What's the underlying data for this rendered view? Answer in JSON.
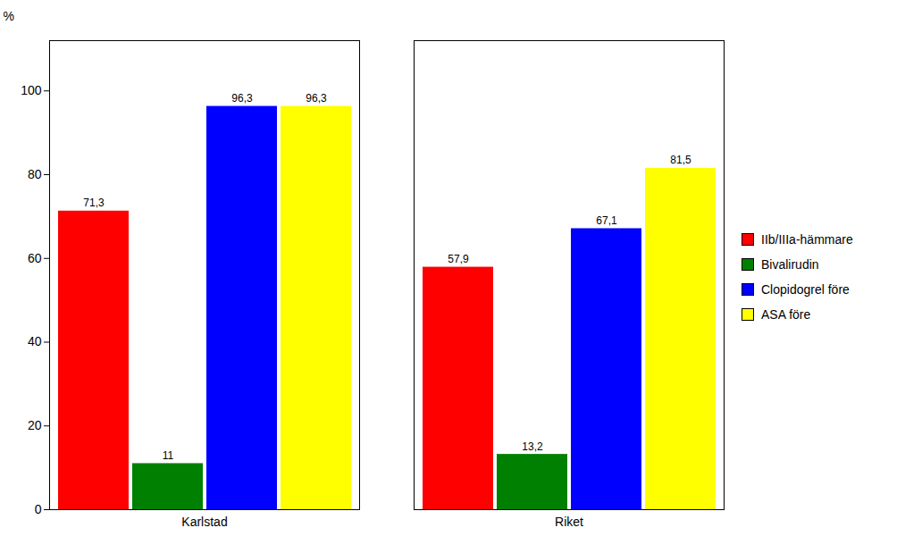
{
  "chart_data": {
    "type": "bar",
    "categories": [
      "Karlstad",
      "Riket"
    ],
    "series": [
      {
        "name": "IIb/IIIa-hämmare",
        "color": "#FF0000",
        "values": [
          71.3,
          57.9
        ],
        "value_labels": [
          "71,3",
          "57,9"
        ]
      },
      {
        "name": "Bivalirudin",
        "color": "#008000",
        "values": [
          11.0,
          13.2
        ],
        "value_labels": [
          "11",
          "13,2"
        ]
      },
      {
        "name": "Clopidogrel före",
        "color": "#0000FF",
        "values": [
          96.3,
          67.1
        ],
        "value_labels": [
          "96,3",
          "67,1"
        ]
      },
      {
        "name": "ASA före",
        "color": "#FFFF00",
        "values": [
          96.3,
          81.5
        ],
        "value_labels": [
          "96,3",
          "81,5"
        ]
      }
    ],
    "ylabel": "%",
    "ylim": [
      0,
      112
    ],
    "yticks": [
      0,
      20,
      40,
      60,
      80,
      100
    ],
    "data_labels": true,
    "legend": "right",
    "grid": false
  }
}
